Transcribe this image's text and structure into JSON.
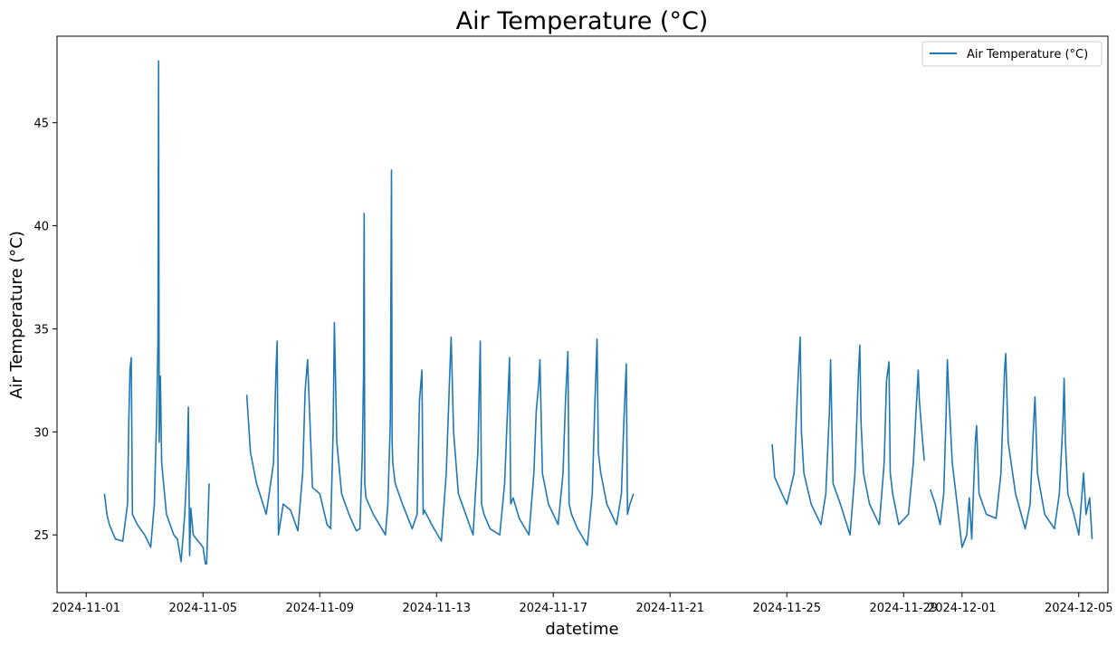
{
  "chart_data": {
    "type": "line",
    "title": "Air Temperature (°C)",
    "xlabel": "datetime",
    "ylabel": "Air Temperature (°C)",
    "xlim": [
      "2024-10-31T00:00",
      "2024-12-06T00:00"
    ],
    "ylim": [
      22.2,
      49.2
    ],
    "grid": false,
    "legend": {
      "placement": "top-right",
      "entries": [
        "Air Temperature (°C)"
      ]
    },
    "x_ticks": [
      "2024-11-01",
      "2024-11-05",
      "2024-11-09",
      "2024-11-13",
      "2024-11-17",
      "2024-11-21",
      "2024-11-25",
      "2024-11-29",
      "2024-12-01",
      "2024-12-05"
    ],
    "y_ticks": [
      25,
      30,
      35,
      40,
      45
    ],
    "series": [
      {
        "name": "Air Temperature (°C)",
        "color": "#1f77b4",
        "segments": [
          {
            "x": [
              "2024-11-01T15:00",
              "2024-11-01T17:00",
              "2024-11-01T19:00",
              "2024-11-02T00:00",
              "2024-11-02T06:00",
              "2024-11-02T10:00",
              "2024-11-02T11:00",
              "2024-11-02T12:00",
              "2024-11-02T13:00",
              "2024-11-02T14:00",
              "2024-11-02T18:00",
              "2024-11-03T00:00",
              "2024-11-03T05:00",
              "2024-11-03T08:00",
              "2024-11-03T10:00",
              "2024-11-03T11:00",
              "2024-11-03T11:30",
              "2024-11-03T12:00",
              "2024-11-03T13:00",
              "2024-11-03T14:00",
              "2024-11-03T18:00",
              "2024-11-04T00:00",
              "2024-11-04T03:00",
              "2024-11-04T06:00",
              "2024-11-04T09:00",
              "2024-11-04T11:00",
              "2024-11-04T12:00",
              "2024-11-04T13:00",
              "2024-11-04T14:00",
              "2024-11-04T16:00",
              "2024-11-04T20:00",
              "2024-11-05T00:00",
              "2024-11-05T02:00",
              "2024-11-05T03:00",
              "2024-11-05T05:00"
            ],
            "y": [
              27.0,
              26.0,
              25.5,
              24.8,
              24.7,
              26.5,
              30.5,
              33.0,
              33.6,
              26.0,
              25.5,
              25.0,
              24.4,
              26.5,
              31.0,
              34.5,
              48.0,
              29.5,
              32.7,
              28.5,
              26.0,
              25.0,
              24.8,
              23.7,
              26.0,
              28.5,
              31.2,
              24.0,
              26.3,
              25.0,
              24.7,
              24.4,
              23.6,
              23.6,
              27.5
            ]
          },
          {
            "x": [
              "2024-11-06T12:00",
              "2024-11-06T15:00",
              "2024-11-06T20:00",
              "2024-11-07T04:00",
              "2024-11-07T10:00",
              "2024-11-07T12:00",
              "2024-11-07T13:00",
              "2024-11-07T14:00",
              "2024-11-07T18:00",
              "2024-11-08T00:00",
              "2024-11-08T06:00",
              "2024-11-08T10:00",
              "2024-11-08T12:00",
              "2024-11-08T14:00",
              "2024-11-08T18:00",
              "2024-11-09T00:00",
              "2024-11-09T06:00",
              "2024-11-09T09:00",
              "2024-11-09T11:00",
              "2024-11-09T12:00",
              "2024-11-09T14:00",
              "2024-11-09T18:00",
              "2024-11-10T00:00",
              "2024-11-10T06:00",
              "2024-11-10T09:00",
              "2024-11-10T11:00",
              "2024-11-10T12:00",
              "2024-11-10T12:30",
              "2024-11-10T13:00",
              "2024-11-10T14:00",
              "2024-11-10T20:00",
              "2024-11-11T06:00",
              "2024-11-11T08:00",
              "2024-11-11T10:00",
              "2024-11-11T11:00",
              "2024-11-11T11:30",
              "2024-11-11T12:00",
              "2024-11-11T14:00",
              "2024-11-11T20:00",
              "2024-11-12T04:00",
              "2024-11-12T08:00",
              "2024-11-12T10:00",
              "2024-11-12T12:00",
              "2024-11-12T13:00",
              "2024-11-12T14:00",
              "2024-11-12T20:00",
              "2024-11-13T04:00",
              "2024-11-13T08:00",
              "2024-11-13T11:00",
              "2024-11-13T12:00",
              "2024-11-13T14:00",
              "2024-11-13T18:00",
              "2024-11-14T00:00",
              "2024-11-14T06:00",
              "2024-11-14T10:00",
              "2024-11-14T12:00",
              "2024-11-14T13:00",
              "2024-11-14T15:00",
              "2024-11-14T20:00",
              "2024-11-15T04:00",
              "2024-11-15T08:00",
              "2024-11-15T11:00",
              "2024-11-15T12:00",
              "2024-11-15T13:00",
              "2024-11-15T15:00",
              "2024-11-15T20:00",
              "2024-11-16T04:00",
              "2024-11-16T08:00",
              "2024-11-16T10:00",
              "2024-11-16T12:00",
              "2024-11-16T13:00",
              "2024-11-16T15:00",
              "2024-11-16T20:00",
              "2024-11-17T04:00",
              "2024-11-17T08:00",
              "2024-11-17T10:00",
              "2024-11-17T12:00",
              "2024-11-17T13:00",
              "2024-11-17T15:00",
              "2024-11-17T20:00",
              "2024-11-18T04:00",
              "2024-11-18T08:00",
              "2024-11-18T10:00",
              "2024-11-18T12:00",
              "2024-11-18T13:00",
              "2024-11-18T15:00",
              "2024-11-18T20:00",
              "2024-11-19T04:00",
              "2024-11-19T08:00",
              "2024-11-19T10:00",
              "2024-11-19T12:00",
              "2024-11-19T13:00",
              "2024-11-19T15:00",
              "2024-11-19T18:00"
            ],
            "y": [
              31.8,
              29.0,
              27.5,
              26.0,
              28.5,
              33.0,
              34.4,
              25.0,
              26.5,
              26.2,
              25.2,
              28.0,
              32.0,
              33.5,
              27.3,
              27.0,
              25.5,
              25.3,
              30.0,
              35.3,
              29.5,
              27.0,
              26.0,
              25.2,
              25.3,
              29.0,
              32.7,
              40.6,
              27.5,
              26.8,
              26.0,
              25.0,
              26.5,
              30.5,
              42.7,
              29.5,
              28.5,
              27.5,
              26.5,
              25.3,
              26.0,
              31.5,
              33.0,
              26.0,
              26.2,
              25.5,
              24.7,
              28.0,
              33.0,
              34.6,
              30.0,
              27.0,
              26.0,
              25.0,
              29.0,
              34.4,
              26.5,
              26.0,
              25.3,
              25.0,
              27.5,
              32.0,
              33.6,
              26.5,
              26.8,
              25.8,
              25.0,
              28.0,
              31.0,
              32.3,
              33.5,
              28.0,
              26.5,
              25.5,
              28.0,
              31.5,
              33.9,
              26.5,
              26.0,
              25.3,
              24.5,
              27.0,
              31.0,
              34.5,
              29.0,
              28.0,
              26.5,
              25.5,
              27.0,
              30.5,
              33.3,
              26.0,
              26.5,
              27.0
            ]
          },
          {
            "x": [
              "2024-11-24T12:00",
              "2024-11-24T14:00",
              "2024-11-24T20:00",
              "2024-11-25T00:00",
              "2024-11-25T06:00",
              "2024-11-25T08:00",
              "2024-11-25T10:00",
              "2024-11-25T11:00",
              "2024-11-25T12:00",
              "2024-11-25T14:00",
              "2024-11-25T20:00",
              "2024-11-26T04:00",
              "2024-11-26T08:00",
              "2024-11-26T11:00",
              "2024-11-26T12:00",
              "2024-11-26T14:00",
              "2024-11-26T20:00",
              "2024-11-27T04:00",
              "2024-11-27T08:00",
              "2024-11-27T11:00",
              "2024-11-27T12:00",
              "2024-11-27T13:00",
              "2024-11-27T15:00",
              "2024-11-27T20:00",
              "2024-11-28T04:00",
              "2024-11-28T08:00",
              "2024-11-28T10:00",
              "2024-11-28T12:00",
              "2024-11-28T13:00",
              "2024-11-28T15:00",
              "2024-11-28T20:00",
              "2024-11-29T04:00",
              "2024-11-29T08:00",
              "2024-11-29T12:00",
              "2024-11-29T13:00",
              "2024-11-29T15:00",
              "2024-11-29T17:00"
            ],
            "y": [
              29.4,
              27.8,
              27.0,
              26.5,
              28.0,
              31.0,
              33.5,
              34.6,
              30.0,
              28.0,
              26.5,
              25.5,
              27.0,
              31.0,
              33.5,
              27.5,
              26.5,
              25.0,
              28.0,
              33.0,
              34.2,
              30.5,
              28.0,
              26.5,
              25.5,
              28.5,
              32.5,
              33.4,
              28.0,
              27.0,
              25.5,
              26.0,
              28.5,
              33.0,
              31.5,
              30.0,
              28.6
            ]
          },
          {
            "x": [
              "2024-11-29T22:00",
              "2024-11-30T02:00",
              "2024-11-30T06:00",
              "2024-11-30T09:00",
              "2024-11-30T11:00",
              "2024-11-30T12:00",
              "2024-11-30T13:00",
              "2024-11-30T16:00",
              "2024-11-30T20:00",
              "2024-12-01T00:00",
              "2024-12-01T04:00",
              "2024-12-01T06:00",
              "2024-12-01T08:00",
              "2024-12-01T11:00",
              "2024-12-01T12:00",
              "2024-12-01T14:00",
              "2024-12-01T20:00",
              "2024-12-02T04:00",
              "2024-12-02T08:00",
              "2024-12-02T11:00",
              "2024-12-02T12:00",
              "2024-12-02T14:00",
              "2024-12-02T20:00",
              "2024-12-03T04:00",
              "2024-12-03T08:00",
              "2024-12-03T11:00",
              "2024-12-03T12:00",
              "2024-12-03T14:00",
              "2024-12-03T20:00",
              "2024-12-04T04:00",
              "2024-12-04T08:00",
              "2024-12-04T11:00",
              "2024-12-04T12:00",
              "2024-12-04T13:00",
              "2024-12-04T15:00",
              "2024-12-04T20:00",
              "2024-12-05T00:00",
              "2024-12-05T04:00",
              "2024-12-05T06:00",
              "2024-12-05T09:00",
              "2024-12-05T11:00"
            ],
            "y": [
              27.2,
              26.5,
              25.5,
              27.0,
              31.0,
              33.5,
              32.0,
              28.5,
              26.5,
              24.4,
              25.0,
              26.8,
              24.8,
              29.5,
              30.3,
              27.0,
              26.0,
              25.8,
              28.0,
              33.0,
              33.8,
              29.5,
              27.0,
              25.3,
              26.5,
              30.5,
              31.7,
              28.0,
              26.0,
              25.3,
              27.0,
              30.5,
              32.6,
              29.5,
              27.0,
              26.0,
              25.0,
              28.0,
              26.0,
              26.8,
              24.8
            ]
          }
        ]
      }
    ]
  }
}
